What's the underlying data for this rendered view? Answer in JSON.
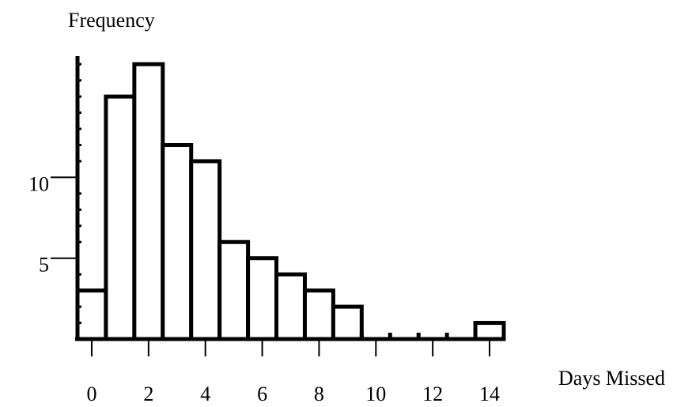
{
  "chart_data": {
    "type": "bar",
    "title": "",
    "ylabel": "Frequency",
    "xlabel": "Days Missed",
    "x_ticks": [
      0,
      2,
      4,
      6,
      8,
      10,
      12,
      14
    ],
    "y_ticks": [
      5,
      10
    ],
    "xlim": [
      -0.5,
      14.5
    ],
    "ylim": [
      0,
      17.5
    ],
    "minor_y_step": 1,
    "bins": [
      {
        "start": -0.5,
        "end": 0.5,
        "value": 3
      },
      {
        "start": 0.5,
        "end": 1.5,
        "value": 15
      },
      {
        "start": 1.5,
        "end": 2.5,
        "value": 17
      },
      {
        "start": 2.5,
        "end": 3.5,
        "value": 12
      },
      {
        "start": 3.5,
        "end": 4.5,
        "value": 11
      },
      {
        "start": 4.5,
        "end": 5.5,
        "value": 6
      },
      {
        "start": 5.5,
        "end": 6.5,
        "value": 5
      },
      {
        "start": 6.5,
        "end": 7.5,
        "value": 4
      },
      {
        "start": 7.5,
        "end": 8.5,
        "value": 3
      },
      {
        "start": 8.5,
        "end": 9.5,
        "value": 2
      },
      {
        "start": 9.5,
        "end": 10.5,
        "value": 0
      },
      {
        "start": 10.5,
        "end": 11.5,
        "value": 0
      },
      {
        "start": 11.5,
        "end": 12.5,
        "value": 0
      },
      {
        "start": 12.5,
        "end": 13.5,
        "value": 0
      },
      {
        "start": 13.5,
        "end": 14.5,
        "value": 1
      }
    ]
  }
}
